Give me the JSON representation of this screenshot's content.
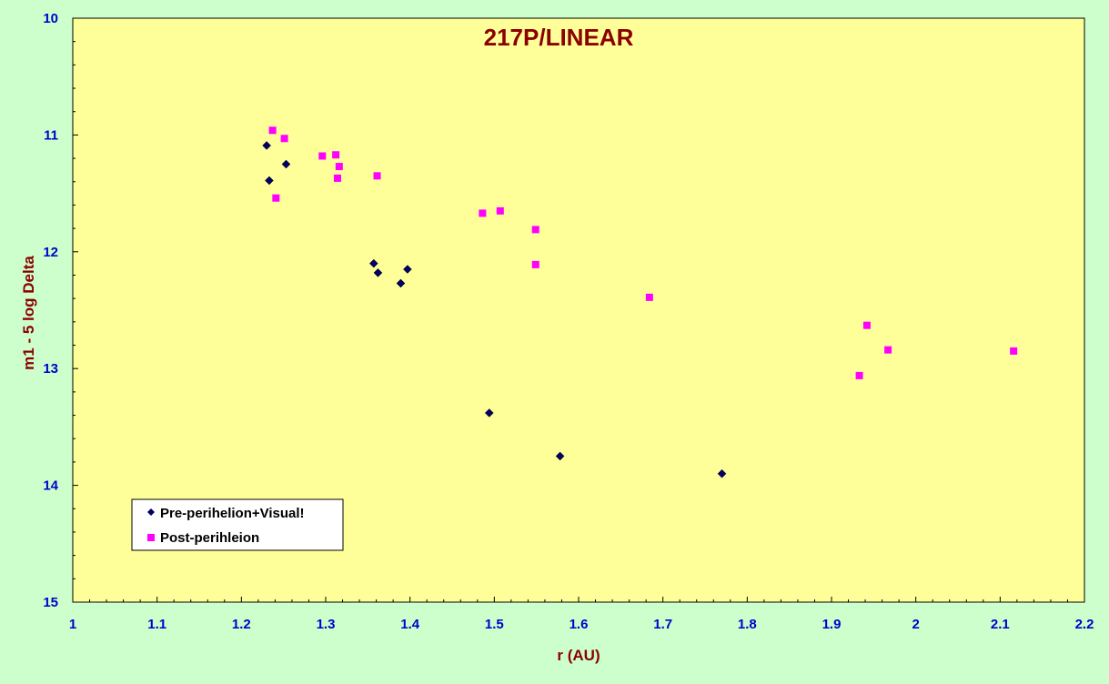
{
  "chart_data": {
    "type": "scatter",
    "title": "217P/LINEAR",
    "xlabel": "r (AU)",
    "ylabel": "m1 - 5 log Delta",
    "xlim": [
      1,
      2.2
    ],
    "ylim": [
      10,
      15
    ],
    "y_inverted": true,
    "x_ticks": [
      "1",
      "1.1",
      "1.2",
      "1.3",
      "1.4",
      "1.5",
      "1.6",
      "1.7",
      "1.8",
      "1.9",
      "2",
      "2.1",
      "2.2"
    ],
    "y_ticks": [
      "10",
      "11",
      "12",
      "13",
      "14",
      "15"
    ],
    "grid": false,
    "legend_position": "bottom-left",
    "colors": {
      "plot_background": "#FFFF99",
      "outer_background": "#CCFFCC",
      "tick_labels": "#0000CC",
      "titles": "#8B0000"
    },
    "series": [
      {
        "name": "Pre-perihelion+Visual!",
        "marker": "diamond",
        "color": "#000066",
        "points": [
          [
            1.23,
            11.09
          ],
          [
            1.233,
            11.39
          ],
          [
            1.253,
            11.25
          ],
          [
            1.357,
            12.1
          ],
          [
            1.362,
            12.18
          ],
          [
            1.389,
            12.27
          ],
          [
            1.397,
            12.15
          ],
          [
            1.494,
            13.38
          ],
          [
            1.578,
            13.75
          ],
          [
            1.77,
            13.9
          ]
        ]
      },
      {
        "name": "Post-perihleion",
        "marker": "square",
        "color": "#FF00FF",
        "points": [
          [
            1.237,
            10.96
          ],
          [
            1.241,
            11.54
          ],
          [
            1.251,
            11.03
          ],
          [
            1.296,
            11.18
          ],
          [
            1.312,
            11.17
          ],
          [
            1.314,
            11.37
          ],
          [
            1.316,
            11.27
          ],
          [
            1.361,
            11.35
          ],
          [
            1.486,
            11.67
          ],
          [
            1.507,
            11.65
          ],
          [
            1.549,
            11.81
          ],
          [
            1.549,
            12.11
          ],
          [
            1.684,
            12.39
          ],
          [
            1.933,
            13.06
          ],
          [
            1.942,
            12.63
          ],
          [
            1.967,
            12.84
          ],
          [
            2.116,
            12.85
          ]
        ]
      }
    ]
  }
}
